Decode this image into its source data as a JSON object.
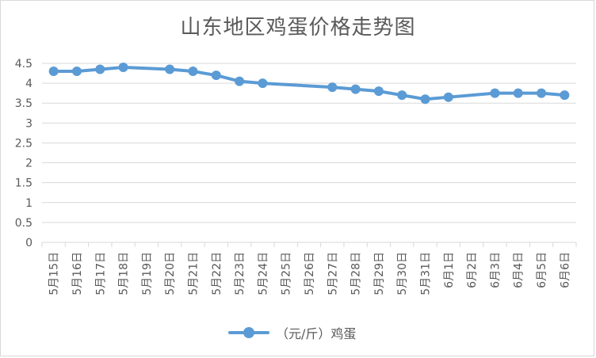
{
  "chart_data": {
    "type": "line",
    "title": "山东地区鸡蛋价格走势图",
    "categories": [
      "5月15日",
      "5月16日",
      "5月17日",
      "5月18日",
      "5月19日",
      "5月20日",
      "5月21日",
      "5月22日",
      "5月23日",
      "5月24日",
      "5月25日",
      "5月26日",
      "5月27日",
      "5月28日",
      "5月29日",
      "5月30日",
      "5月31日",
      "6月1日",
      "6月2日",
      "6月3日",
      "6月4日",
      "6月5日",
      "6月6日"
    ],
    "series": [
      {
        "name": "（元/斤）鸡蛋",
        "color": "#5b9bd5",
        "values": [
          4.3,
          4.3,
          4.35,
          4.4,
          null,
          4.35,
          4.3,
          4.2,
          4.05,
          4.0,
          null,
          null,
          3.9,
          3.85,
          3.8,
          3.7,
          3.6,
          3.65,
          null,
          3.75,
          3.75,
          3.75,
          3.7
        ]
      }
    ],
    "y_ticks": [
      "0",
      "0.5",
      "1",
      "1.5",
      "2",
      "2.5",
      "3",
      "3.5",
      "4",
      "4.5"
    ],
    "ylim": [
      0,
      4.5
    ],
    "grid": "horizontal",
    "legend_position": "bottom"
  }
}
